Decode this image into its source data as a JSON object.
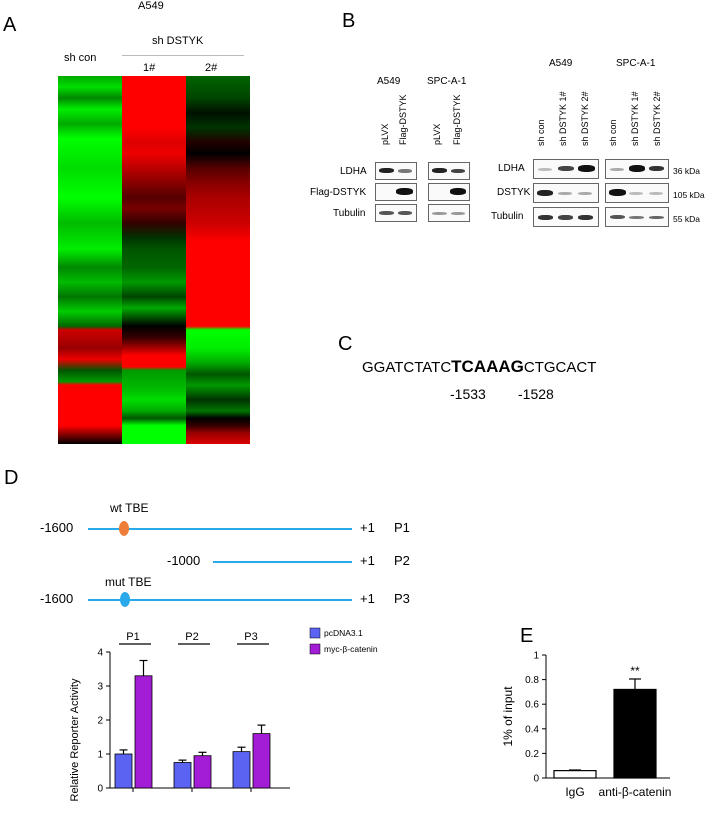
{
  "panelA": {
    "letter": "A",
    "title": "A549",
    "col_control": "sh con",
    "group_label": "sh DSTYK",
    "col_1": "1#",
    "col_2": "2#",
    "heatmap_colors": {
      "high": "#ff0000",
      "low": "#00ff00",
      "mid": "#000000"
    }
  },
  "panelB": {
    "letter": "B",
    "left": {
      "cell_a": "A549",
      "cell_b": "SPC-A-1",
      "lanes": [
        "pLVX",
        "Flag-DSTYK",
        "pLVX",
        "Flag-DSTYK"
      ],
      "rows": [
        "LDHA",
        "Flag-DSTYK",
        "Tubulin"
      ]
    },
    "right": {
      "cell_a": "A549",
      "cell_b": "SPC-A-1",
      "lanes": [
        "sh con",
        "sh DSTYK  1#",
        "sh DSTYK  2#",
        "sh con",
        "sh DSTYK  1#",
        "sh DSTYK  2#"
      ],
      "rows": [
        "LDHA",
        "DSTYK",
        "Tubulin"
      ],
      "sizes": [
        "36 kDa",
        "105 kDa",
        "55 kDa"
      ]
    }
  },
  "panelC": {
    "letter": "C",
    "seq_left": "GGATCTATC",
    "seq_bold": "TCAAAG",
    "seq_right": "CTGCACT",
    "pos_1": "-1533",
    "pos_2": "-1528"
  },
  "panelD": {
    "letter": "D",
    "constructs": [
      {
        "start": "-1600",
        "end": "+1",
        "name": "P1",
        "site": "wt TBE"
      },
      {
        "start": "-1000",
        "end": "+1",
        "name": "P2",
        "site": ""
      },
      {
        "start": "-1600",
        "end": "+1",
        "name": "P3",
        "site": "mut TBE"
      }
    ],
    "site_colors": {
      "wt": "#ee7d3a",
      "mut": "#29a9ea",
      "line": "#29a9ea"
    }
  },
  "panelE": {
    "letter": "E"
  },
  "chart_data": [
    {
      "type": "bar",
      "categories": [
        "P1",
        "P2",
        "P3"
      ],
      "series": [
        {
          "name": "pcDNA3.1",
          "values": [
            1.0,
            0.75,
            1.07
          ],
          "errors": [
            0.12,
            0.07,
            0.13
          ],
          "color": "#5a63f2"
        },
        {
          "name": "myc-β-catenin",
          "values": [
            3.3,
            0.95,
            1.6
          ],
          "errors": [
            0.45,
            0.1,
            0.25
          ],
          "color": "#a31cd6"
        }
      ],
      "xlabel": "",
      "ylabel": "Relative Reporter Activity",
      "ylim": [
        0,
        4
      ],
      "yticks": [
        0,
        1,
        2,
        3,
        4
      ],
      "legend": "right"
    },
    {
      "type": "bar",
      "categories": [
        "IgG",
        "anti-β-catenin"
      ],
      "values": [
        0.06,
        0.72
      ],
      "errors": [
        0.005,
        0.085
      ],
      "colors": [
        "#ffffff",
        "#000000"
      ],
      "significance": [
        "",
        "**"
      ],
      "xlabel": "",
      "ylabel": "1% of input",
      "ylim": [
        0,
        1.0
      ],
      "yticks": [
        0,
        0.2,
        0.4,
        0.6,
        0.8,
        1.0
      ]
    }
  ]
}
